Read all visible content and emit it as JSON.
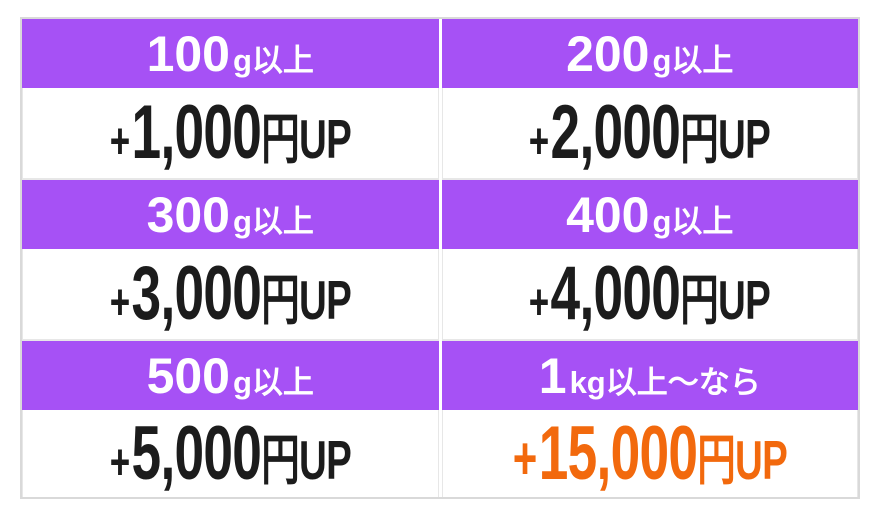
{
  "colors": {
    "header_bg": "#a651f5",
    "header_text": "#ffffff",
    "value_text": "#1c1c1c",
    "highlight_text": "#f2690d",
    "border": "#d9d9d9",
    "border_soft": "#e7e7e7",
    "page_bg": "#ffffff"
  },
  "chart_data": {
    "type": "table",
    "layout": {
      "columns": 2,
      "rows": 3,
      "legend": "none",
      "grid": "alternating purple header / white value rows"
    },
    "tiers": [
      {
        "threshold_value": "100",
        "threshold_unit": "g以上",
        "bonus_plus": "+",
        "bonus_amount": "1,000",
        "bonus_suffix": "円UP",
        "highlight": false
      },
      {
        "threshold_value": "200",
        "threshold_unit": "g以上",
        "bonus_plus": "+",
        "bonus_amount": "2,000",
        "bonus_suffix": "円UP",
        "highlight": false
      },
      {
        "threshold_value": "300",
        "threshold_unit": "g以上",
        "bonus_plus": "+",
        "bonus_amount": "3,000",
        "bonus_suffix": "円UP",
        "highlight": false
      },
      {
        "threshold_value": "400",
        "threshold_unit": "g以上",
        "bonus_plus": "+",
        "bonus_amount": "4,000",
        "bonus_suffix": "円UP",
        "highlight": false
      },
      {
        "threshold_value": "500",
        "threshold_unit": "g以上",
        "bonus_plus": "+",
        "bonus_amount": "5,000",
        "bonus_suffix": "円UP",
        "highlight": false
      },
      {
        "threshold_value": "1",
        "threshold_unit": "kg以上〜なら",
        "bonus_plus": "+",
        "bonus_amount": "15,000",
        "bonus_suffix": "円UP",
        "highlight": true
      }
    ]
  }
}
